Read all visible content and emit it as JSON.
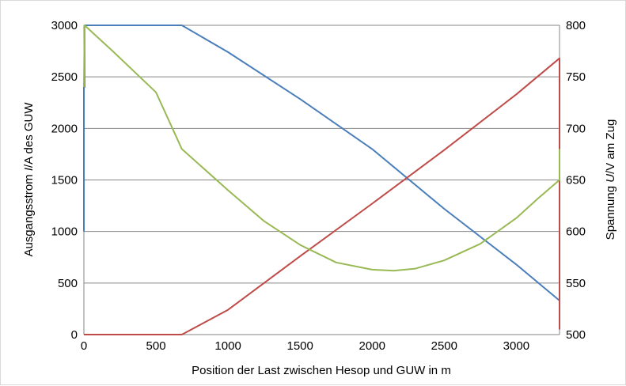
{
  "chart_data": {
    "type": "line",
    "xlabel": "Position der Last zwischen Hesop und GUW in m",
    "ylabel_left": {
      "pre": "Ausgangsstrom ",
      "ital": "I",
      "post": "/A des GUW"
    },
    "ylabel_right": {
      "pre": "Spannung ",
      "ital": "U",
      "post": "/V am Zug"
    },
    "xlim": [
      0,
      3300
    ],
    "ylim_left": [
      0,
      3000
    ],
    "ylim_right": [
      500,
      800
    ],
    "x_ticks": [
      "0",
      "500",
      "1000",
      "1500",
      "2000",
      "2500",
      "3000"
    ],
    "y_ticks_left": [
      "0",
      "500",
      "1000",
      "1500",
      "2000",
      "2500",
      "3000"
    ],
    "y_ticks_right": [
      "500",
      "550",
      "600",
      "650",
      "700",
      "750",
      "800"
    ],
    "grid": "horizontal",
    "legend": "none",
    "series": [
      {
        "axis": "left",
        "color": "#4a7ebb",
        "points": [
          [
            0,
            1000
          ],
          [
            0,
            2400
          ],
          [
            5,
            2400
          ],
          [
            5,
            3000
          ],
          [
            680,
            3000
          ],
          [
            1000,
            2740
          ],
          [
            1500,
            2285
          ],
          [
            2000,
            1800
          ],
          [
            2500,
            1220
          ],
          [
            3000,
            680
          ],
          [
            3300,
            330
          ]
        ]
      },
      {
        "axis": "left",
        "color": "#be4b48",
        "points": [
          [
            0,
            0
          ],
          [
            680,
            0
          ],
          [
            1000,
            240
          ],
          [
            1500,
            760
          ],
          [
            2000,
            1270
          ],
          [
            2500,
            1790
          ],
          [
            3000,
            2330
          ],
          [
            3300,
            2680
          ],
          [
            3300,
            50
          ]
        ]
      },
      {
        "axis": "right",
        "color": "#98b954",
        "points": [
          [
            0,
            740
          ],
          [
            5,
            800
          ],
          [
            200,
            775
          ],
          [
            500,
            735
          ],
          [
            680,
            680
          ],
          [
            1000,
            640
          ],
          [
            1250,
            610
          ],
          [
            1500,
            587
          ],
          [
            1750,
            570
          ],
          [
            2000,
            563
          ],
          [
            2150,
            562
          ],
          [
            2300,
            564
          ],
          [
            2500,
            572
          ],
          [
            2750,
            588
          ],
          [
            3000,
            613
          ],
          [
            3150,
            632
          ],
          [
            3300,
            650
          ],
          [
            3300,
            680
          ]
        ]
      }
    ]
  }
}
